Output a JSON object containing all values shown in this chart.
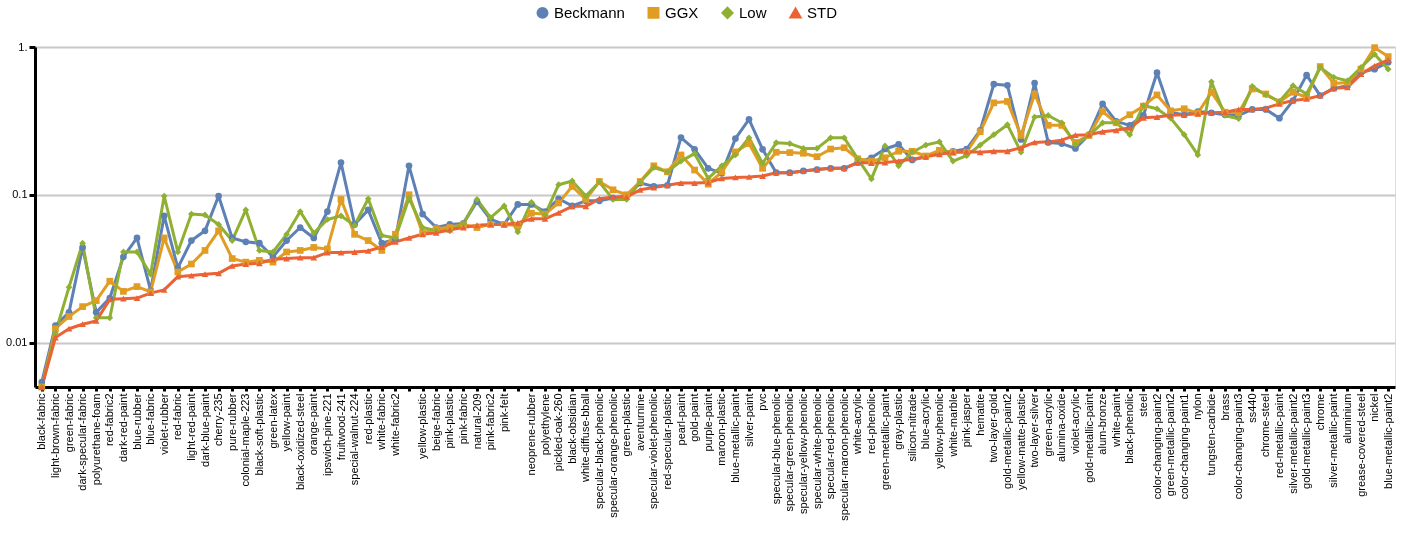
{
  "chart_data": {
    "type": "line",
    "categories": [
      "black-fabric",
      "light-brown-fabric",
      "green-fabric",
      "dark-specular-fabric",
      "polyurethane-foam",
      "red-fabric2",
      "dark-red-paint",
      "blue-rubber",
      "blue-fabric",
      "violet-rubber",
      "red-fabric",
      "light-red-paint",
      "dark-blue-paint",
      "cherry-235",
      "pure-rubber",
      "colonial-maple-223",
      "black-soft-plastic",
      "green-latex",
      "yellow-paint",
      "black-oxidized-steel",
      "orange-paint",
      "ipswich-pine-221",
      "fruitwood-241",
      "special-walnut-224",
      "red-plastic",
      "white-fabric",
      "white-fabric2",
      null,
      "yellow-plastic",
      "beige-fabric",
      "pink-plastic",
      "pink-fabric",
      "natural-209",
      "pink-fabric2",
      "pink-felt",
      null,
      "neoprene-rubber",
      "polyethylene",
      "pickled-oak-260",
      "black-obsidian",
      "white-diffuse-bball",
      "specular-black-phenolic",
      "specular-orange-phenolic",
      "green-plastic",
      "aventurnine",
      "specular-violet-phenolic",
      "red-specular-plastic",
      "pearl-paint",
      "gold-paint",
      "purple-paint",
      "maroon-plastic",
      "blue-metallic-paint",
      "silver-paint",
      "pvc",
      "specular-blue-phenolic",
      "specular-green-phenolic",
      "specular-yellow-phenolic",
      "specular-white-phenolic",
      "specular-red-phenolic",
      "specular-maroon-phenolic",
      "white-acrylic",
      "red-phenolic",
      "green-metallic-paint",
      "gray-plastic",
      "silicon-nitrade",
      "blue-acrylic",
      "yellow-phenolic",
      "white-marble",
      "pink-jasper",
      "hematite",
      "two-layer-gold",
      "gold-metallic-paint2",
      "yellow-matte-plastic",
      "two-layer-silver",
      "green-acrylic",
      "alumina-oxide",
      "violet-acrylic",
      "gold-metallic-paint",
      "alum-bronze",
      "white-paint",
      "black-phenolic",
      "steel",
      "color-changing-paint2",
      "green-metallic-paint2",
      "color-changing-paint1",
      "nylon",
      "tungsten-carbide",
      "brass",
      "color-changing-paint3",
      "ss440",
      "chrome-steel",
      "red-metallic-paint",
      "silver-metallic-paint2",
      "gold-metallic-paint3",
      "chrome",
      "silver-metallic-paint",
      "aluminium",
      "grease-covered-steel",
      "nickel",
      "blue-metallic-paint2"
    ],
    "series": [
      {
        "name": "Beckmann",
        "color": "#5e81b5",
        "marker": "circle",
        "values": [
          0.0054,
          0.013,
          0.016,
          0.044,
          0.016,
          0.02,
          0.038,
          0.051,
          0.0225,
          0.072,
          0.032,
          0.049,
          0.057,
          0.098,
          0.051,
          0.048,
          0.047,
          0.038,
          0.049,
          0.06,
          0.051,
          0.077,
          0.165,
          0.063,
          0.079,
          0.047,
          0.05,
          0.157,
          0.074,
          0.06,
          0.063,
          0.064,
          0.09,
          0.068,
          0.063,
          0.086,
          0.086,
          0.077,
          0.094,
          0.084,
          0.091,
          0.091,
          0.095,
          0.098,
          0.12,
          0.114,
          0.116,
          0.244,
          0.203,
          0.151,
          0.14,
          0.24,
          0.324,
          0.203,
          0.141,
          0.141,
          0.145,
          0.148,
          0.151,
          0.151,
          0.165,
          0.178,
          0.204,
          0.219,
          0.172,
          0.181,
          0.194,
          0.197,
          0.204,
          0.273,
          0.56,
          0.55,
          0.237,
          0.57,
          0.226,
          0.222,
          0.206,
          0.255,
          0.412,
          0.314,
          0.295,
          0.344,
          0.67,
          0.36,
          0.348,
          0.366,
          0.359,
          0.348,
          0.344,
          0.378,
          0.378,
          0.33,
          0.434,
          0.645,
          0.469,
          0.525,
          0.547,
          0.673,
          0.708,
          0.79
        ]
      },
      {
        "name": "GGX",
        "color": "#e19c24",
        "marker": "square",
        "values": [
          0.005,
          0.0124,
          0.015,
          0.0175,
          0.0192,
          0.026,
          0.0222,
          0.0239,
          0.022,
          0.051,
          0.03,
          0.034,
          0.042,
          0.057,
          0.037,
          0.035,
          0.036,
          0.035,
          0.041,
          0.042,
          0.044,
          0.043,
          0.093,
          0.054,
          0.049,
          0.042,
          0.054,
          0.1,
          0.055,
          0.059,
          0.06,
          0.063,
          0.06,
          0.063,
          0.063,
          0.062,
          0.075,
          0.074,
          0.088,
          0.114,
          0.093,
          0.123,
          0.108,
          0.1,
          0.123,
          0.157,
          0.143,
          0.186,
          0.147,
          0.118,
          0.143,
          0.195,
          0.222,
          0.151,
          0.194,
          0.193,
          0.191,
          0.181,
          0.204,
          0.208,
          0.175,
          0.169,
          0.178,
          0.197,
          0.197,
          0.183,
          0.2,
          0.194,
          0.194,
          0.267,
          0.419,
          0.428,
          0.252,
          0.481,
          0.295,
          0.295,
          0.226,
          0.252,
          0.366,
          0.307,
          0.348,
          0.398,
          0.474,
          0.37,
          0.382,
          0.357,
          0.494,
          0.362,
          0.359,
          0.52,
          0.481,
          0.424,
          0.494,
          0.457,
          0.737,
          0.567,
          0.576,
          0.708,
          0.99,
          0.861
        ]
      },
      {
        "name": "Low",
        "color": "#8fb032",
        "marker": "diamond",
        "values": [
          0.005,
          0.0116,
          0.0237,
          0.047,
          0.0147,
          0.0147,
          0.041,
          0.041,
          0.029,
          0.098,
          0.041,
          0.074,
          0.073,
          0.063,
          0.049,
          0.079,
          0.042,
          0.041,
          0.054,
          0.077,
          0.055,
          0.068,
          0.072,
          0.062,
          0.094,
          0.053,
          0.051,
          0.095,
          0.06,
          0.057,
          0.057,
          0.064,
          0.093,
          0.07,
          0.084,
          0.056,
          0.089,
          0.073,
          0.117,
          0.124,
          0.098,
          0.122,
          0.093,
          0.093,
          0.122,
          0.153,
          0.143,
          0.169,
          0.19,
          0.129,
          0.157,
          0.186,
          0.243,
          0.163,
          0.225,
          0.222,
          0.206,
          0.206,
          0.243,
          0.243,
          0.175,
          0.128,
          0.214,
          0.157,
          0.194,
          0.217,
          0.228,
          0.169,
          0.184,
          0.217,
          0.255,
          0.298,
          0.194,
          0.336,
          0.344,
          0.307,
          0.219,
          0.252,
          0.307,
          0.307,
          0.255,
          0.402,
          0.382,
          0.33,
          0.255,
          0.186,
          0.582,
          0.344,
          0.327,
          0.542,
          0.474,
          0.428,
          0.547,
          0.481,
          0.727,
          0.623,
          0.591,
          0.727,
          0.893,
          0.708
        ]
      },
      {
        "name": "STD",
        "color": "#eb6235",
        "marker": "triangle",
        "values": [
          0.005,
          0.0108,
          0.0124,
          0.0133,
          0.014,
          0.0196,
          0.0198,
          0.02,
          0.0216,
          0.0227,
          0.0279,
          0.0284,
          0.029,
          0.0294,
          0.033,
          0.034,
          0.0344,
          0.0366,
          0.037,
          0.0375,
          0.0375,
          0.0406,
          0.0406,
          0.041,
          0.0417,
          0.0443,
          0.048,
          0.051,
          0.054,
          0.0553,
          0.058,
          0.06,
          0.0622,
          0.063,
          0.063,
          0.0645,
          0.0687,
          0.0687,
          0.0753,
          0.0835,
          0.0835,
          0.094,
          0.0967,
          0.0967,
          0.108,
          0.112,
          0.116,
          0.12,
          0.12,
          0.121,
          0.129,
          0.131,
          0.132,
          0.134,
          0.141,
          0.141,
          0.145,
          0.148,
          0.151,
          0.151,
          0.165,
          0.164,
          0.165,
          0.169,
          0.174,
          0.181,
          0.188,
          0.194,
          0.196,
          0.194,
          0.197,
          0.197,
          0.208,
          0.226,
          0.228,
          0.234,
          0.253,
          0.255,
          0.267,
          0.273,
          0.284,
          0.332,
          0.336,
          0.345,
          0.348,
          0.353,
          0.359,
          0.362,
          0.378,
          0.378,
          0.386,
          0.412,
          0.434,
          0.445,
          0.469,
          0.525,
          0.533,
          0.655,
          0.745,
          0.818
        ]
      }
    ],
    "ylim": [
      0.005,
      1
    ],
    "yticks": [
      0.01,
      0.1,
      {
        "value": 1,
        "label": "1."
      }
    ],
    "log": "y",
    "grid": "y",
    "legend": "top",
    "line_style": "solid"
  }
}
